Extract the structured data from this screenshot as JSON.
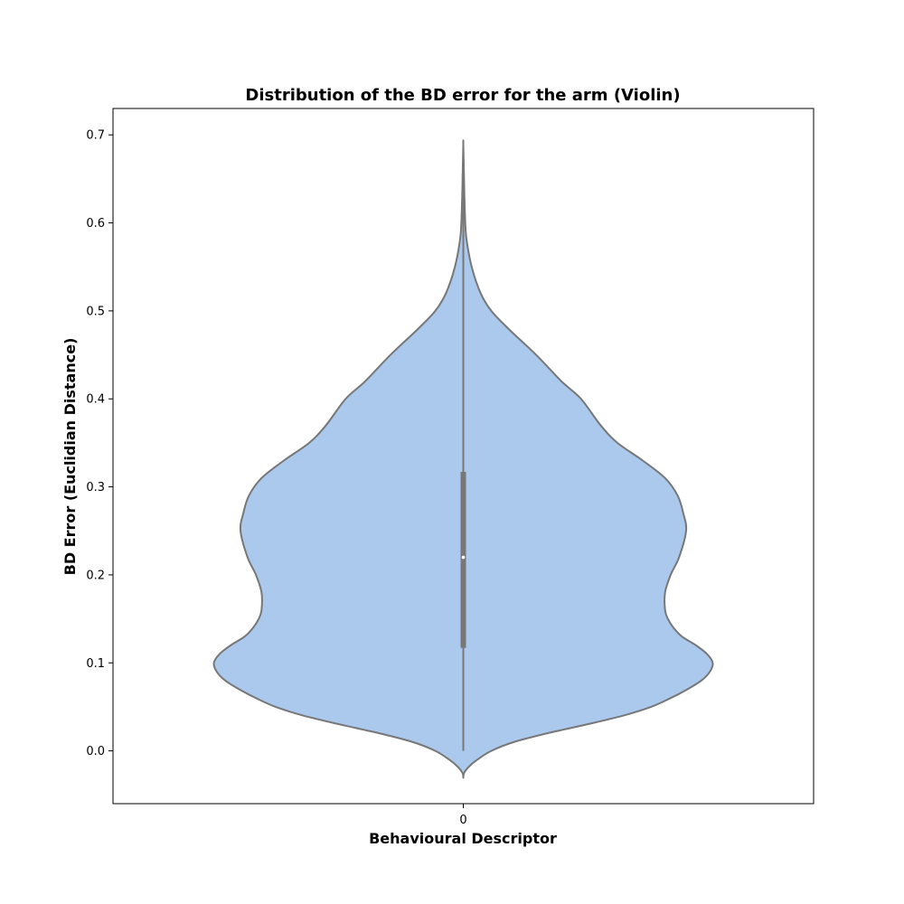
{
  "chart_data": {
    "type": "violin",
    "title": "Distribution of the BD error for the arm (Violin)",
    "xlabel": "Behavioural Descriptor",
    "ylabel": "BD Error (Euclidian Distance)",
    "categories": [
      "0"
    ],
    "ylim": [
      -0.06,
      0.73
    ],
    "yticks": [
      0.0,
      0.1,
      0.2,
      0.3,
      0.4,
      0.5,
      0.6,
      0.7
    ],
    "grid": false,
    "legend": "none",
    "colors": {
      "fill": "#abc9ec",
      "outline": "#777777",
      "box": "#777777",
      "median": "#ffffff"
    },
    "series": [
      {
        "category": "0",
        "min": 0.0,
        "max": 0.69,
        "q1": 0.117,
        "median": 0.22,
        "q3": 0.317,
        "kde_half_width_fraction": [
          [
            -0.03,
            0.0
          ],
          [
            -0.025,
            0.003
          ],
          [
            -0.018,
            0.02
          ],
          [
            -0.01,
            0.05
          ],
          [
            0.0,
            0.1
          ],
          [
            0.01,
            0.18
          ],
          [
            0.02,
            0.3
          ],
          [
            0.03,
            0.44
          ],
          [
            0.04,
            0.57
          ],
          [
            0.05,
            0.67
          ],
          [
            0.06,
            0.74
          ],
          [
            0.07,
            0.8
          ],
          [
            0.08,
            0.85
          ],
          [
            0.09,
            0.88
          ],
          [
            0.1,
            0.89
          ],
          [
            0.11,
            0.87
          ],
          [
            0.12,
            0.83
          ],
          [
            0.13,
            0.78
          ],
          [
            0.14,
            0.75
          ],
          [
            0.15,
            0.73
          ],
          [
            0.16,
            0.72
          ],
          [
            0.18,
            0.72
          ],
          [
            0.2,
            0.74
          ],
          [
            0.22,
            0.77
          ],
          [
            0.25,
            0.795
          ],
          [
            0.27,
            0.785
          ],
          [
            0.29,
            0.765
          ],
          [
            0.31,
            0.72
          ],
          [
            0.33,
            0.64
          ],
          [
            0.35,
            0.55
          ],
          [
            0.37,
            0.49
          ],
          [
            0.4,
            0.42
          ],
          [
            0.42,
            0.35
          ],
          [
            0.45,
            0.26
          ],
          [
            0.48,
            0.16
          ],
          [
            0.5,
            0.1
          ],
          [
            0.52,
            0.062
          ],
          [
            0.55,
            0.03
          ],
          [
            0.58,
            0.012
          ],
          [
            0.6,
            0.007
          ],
          [
            0.63,
            0.004
          ],
          [
            0.66,
            0.002
          ],
          [
            0.69,
            0.0
          ]
        ]
      }
    ]
  }
}
